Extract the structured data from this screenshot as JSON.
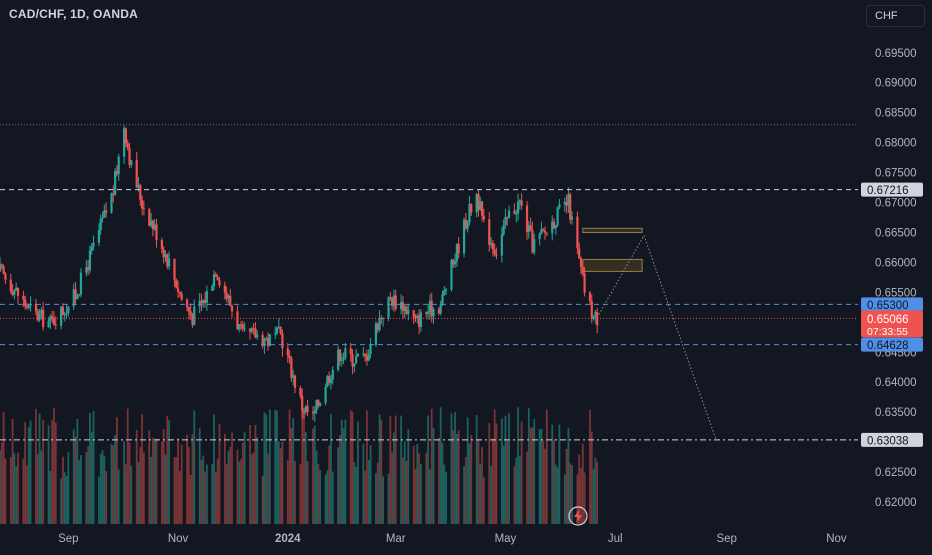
{
  "header": {
    "symbol_title": "CAD/CHF, 1D, OANDA",
    "currency_button": "CHF"
  },
  "colors": {
    "background": "#131722",
    "up": "#26a69a",
    "down": "#ef5350",
    "volume_up": "#1f6f67",
    "volume_down": "#8b3a3a",
    "grid_text": "#b2b5be",
    "dashed_white": "#d1d4dc",
    "dashed_blue": "#5b8ad9",
    "zone_fill": "#3a3220",
    "zone_border": "#a08a58"
  },
  "chart_data": {
    "type": "candlestick",
    "title": "",
    "y_axis": {
      "ticks": [
        "0.69500",
        "0.69000",
        "0.68500",
        "0.68000",
        "0.67500",
        "0.67000",
        "0.66500",
        "0.66000",
        "0.65500",
        "0.65000",
        "0.64500",
        "0.64000",
        "0.63500",
        "0.63000",
        "0.62500",
        "0.62000"
      ],
      "range": [
        0.6175,
        0.6993
      ]
    },
    "x_axis": {
      "labels": [
        "Sep",
        "Nov",
        "2024",
        "Mar",
        "May",
        "Jul",
        "Sep",
        "Nov"
      ],
      "bold_label": "2024",
      "range": [
        "2023-07-25",
        "2024-11-13"
      ]
    },
    "price_path": [
      [
        "2023-07-25",
        0.6585
      ],
      [
        "2023-08-01",
        0.656
      ],
      [
        "2023-08-08",
        0.653
      ],
      [
        "2023-08-15",
        0.651
      ],
      [
        "2023-08-22",
        0.65
      ],
      [
        "2023-08-29",
        0.652
      ],
      [
        "2023-09-05",
        0.6545
      ],
      [
        "2023-09-12",
        0.66
      ],
      [
        "2023-09-19",
        0.666
      ],
      [
        "2023-09-26",
        0.672
      ],
      [
        "2023-10-02",
        0.683
      ],
      [
        "2023-10-06",
        0.676
      ],
      [
        "2023-10-12",
        0.67
      ],
      [
        "2023-10-20",
        0.665
      ],
      [
        "2023-10-27",
        0.66
      ],
      [
        "2023-11-03",
        0.654
      ],
      [
        "2023-11-09",
        0.651
      ],
      [
        "2023-11-16",
        0.654
      ],
      [
        "2023-11-22",
        0.659
      ],
      [
        "2023-11-30",
        0.653
      ],
      [
        "2023-12-07",
        0.6475
      ],
      [
        "2023-12-14",
        0.648
      ],
      [
        "2023-12-21",
        0.647
      ],
      [
        "2023-12-28",
        0.648
      ],
      [
        "2024-01-03",
        0.642
      ],
      [
        "2024-01-09",
        0.636
      ],
      [
        "2024-01-15",
        0.634
      ],
      [
        "2024-01-22",
        0.64
      ],
      [
        "2024-01-30",
        0.645
      ],
      [
        "2024-02-06",
        0.644
      ],
      [
        "2024-02-13",
        0.644
      ],
      [
        "2024-02-20",
        0.65
      ],
      [
        "2024-02-27",
        0.654
      ],
      [
        "2024-03-05",
        0.653
      ],
      [
        "2024-03-12",
        0.65
      ],
      [
        "2024-03-19",
        0.652
      ],
      [
        "2024-03-26",
        0.653
      ],
      [
        "2024-04-02",
        0.66
      ],
      [
        "2024-04-09",
        0.667
      ],
      [
        "2024-04-15",
        0.6715
      ],
      [
        "2024-04-19",
        0.666
      ],
      [
        "2024-04-26",
        0.662
      ],
      [
        "2024-05-03",
        0.668
      ],
      [
        "2024-05-09",
        0.67
      ],
      [
        "2024-05-16",
        0.663
      ],
      [
        "2024-05-23",
        0.665
      ],
      [
        "2024-05-30",
        0.668
      ],
      [
        "2024-06-05",
        0.67
      ],
      [
        "2024-06-11",
        0.66
      ],
      [
        "2024-06-15",
        0.654
      ],
      [
        "2024-06-19",
        0.651
      ],
      [
        "2024-06-21",
        0.6507
      ]
    ],
    "last_candle_date": "2024-06-21",
    "horizontal_levels": [
      {
        "value": "0.67216",
        "style": "dashed-white",
        "label_style": "light"
      },
      {
        "value": "0.65300",
        "style": "dashed-blue",
        "label_style": "blue"
      },
      {
        "value": "0.64628",
        "style": "dashed-blue",
        "label_style": "blue"
      },
      {
        "value": "0.63038",
        "style": "dash-dot-white",
        "label_style": "light"
      },
      {
        "value": "0.68300",
        "style": "dotted-grey",
        "label_style": "none"
      }
    ],
    "current_price": {
      "value": "0.65066",
      "countdown": "07:33:55"
    },
    "zones": [
      {
        "y_range": [
          0.665,
          0.6657
        ],
        "x_range": [
          "2024-06-13",
          "2024-07-16"
        ]
      },
      {
        "y_range": [
          0.6585,
          0.6605
        ],
        "x_range": [
          "2024-06-13",
          "2024-07-16"
        ]
      }
    ],
    "projection": [
      [
        "2024-06-21",
        0.6508
      ],
      [
        "2024-07-17",
        0.6645
      ],
      [
        "2024-08-26",
        0.6305
      ]
    ]
  }
}
